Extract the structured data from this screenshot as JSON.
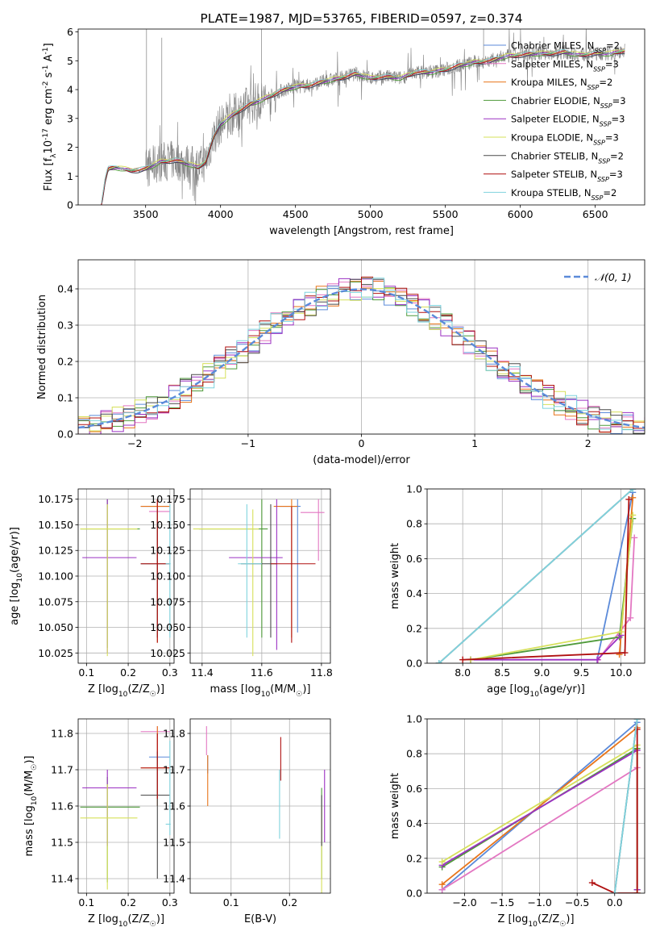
{
  "colors": {
    "Chabrier MILES": "#5b8ad9",
    "Salpeter MILES": "#e377c2",
    "Kroupa MILES": "#e8751a",
    "Chabrier ELODIE": "#4f9a3a",
    "Salpeter ELODIE": "#9b30c2",
    "Kroupa ELODIE": "#d6e05a",
    "Chabrier STELIB": "#4a4a4a",
    "Salpeter STELIB": "#b01010",
    "Kroupa STELIB": "#7fd3de",
    "gauss": "#5b8ad9",
    "spectrum": "#808080",
    "grid": "#b0b0b0"
  },
  "chart_data": [
    {
      "id": "spectrum",
      "type": "line",
      "title": "PLATE=1987, MJD=53765, FIBERID=0597, z=0.374",
      "xlabel": "wavelength [Angstrom, rest frame]",
      "ylabel": "Flux [f$_\\lambda$10$^{-17}$ erg cm$^{-2}$ s$^{-1}$ A$^{-1}$]",
      "xlim": [
        3050,
        6830
      ],
      "ylim": [
        0,
        6.1
      ],
      "xticks": [
        3500,
        4000,
        4500,
        5000,
        5500,
        6000,
        6500
      ],
      "yticks": [
        0,
        1,
        2,
        3,
        4,
        5,
        6
      ],
      "grid": false,
      "legend_position": "top-right",
      "legend": [
        {
          "model": "Chabrier MILES",
          "label": "Chabrier MILES, N",
          "sub": "SSP",
          "n": "=2"
        },
        {
          "model": "Salpeter MILES",
          "label": "Salpeter MILES, N",
          "sub": "SSP",
          "n": "=3"
        },
        {
          "model": "Kroupa MILES",
          "label": "Kroupa MILES, N",
          "sub": "SSP",
          "n": "=2"
        },
        {
          "model": "Chabrier ELODIE",
          "label": "Chabrier ELODIE, N",
          "sub": "SSP",
          "n": "=3"
        },
        {
          "model": "Salpeter ELODIE",
          "label": "Salpeter ELODIE, N",
          "sub": "SSP",
          "n": "=3"
        },
        {
          "model": "Kroupa ELODIE",
          "label": "Kroupa ELODIE, N",
          "sub": "SSP",
          "n": "=3"
        },
        {
          "model": "Chabrier STELIB",
          "label": "Chabrier STELIB, N",
          "sub": "SSP",
          "n": "=2"
        },
        {
          "model": "Salpeter STELIB",
          "label": "Salpeter STELIB, N",
          "sub": "SSP",
          "n": "=3"
        },
        {
          "model": "Kroupa STELIB",
          "label": "Kroupa STELIB, N",
          "sub": "SSP",
          "n": "=2"
        }
      ],
      "continuum": [
        [
          3205,
          0
        ],
        [
          3230,
          0.85
        ],
        [
          3250,
          1.25
        ],
        [
          3300,
          1.3
        ],
        [
          3350,
          1.25
        ],
        [
          3400,
          1.2
        ],
        [
          3450,
          1.2
        ],
        [
          3500,
          1.25
        ],
        [
          3600,
          1.5
        ],
        [
          3700,
          1.55
        ],
        [
          3800,
          1.4
        ],
        [
          3850,
          1.3
        ],
        [
          3900,
          1.5
        ],
        [
          3950,
          2.3
        ],
        [
          4000,
          2.8
        ],
        [
          4100,
          3.2
        ],
        [
          4200,
          3.5
        ],
        [
          4300,
          3.7
        ],
        [
          4400,
          3.95
        ],
        [
          4500,
          4.1
        ],
        [
          4600,
          4.15
        ],
        [
          4700,
          4.3
        ],
        [
          4800,
          4.4
        ],
        [
          4900,
          4.55
        ],
        [
          5000,
          4.4
        ],
        [
          5100,
          4.45
        ],
        [
          5200,
          4.4
        ],
        [
          5300,
          4.6
        ],
        [
          5400,
          4.6
        ],
        [
          5500,
          4.7
        ],
        [
          5600,
          4.85
        ],
        [
          5700,
          4.95
        ],
        [
          5800,
          5.0
        ],
        [
          5900,
          5.15
        ],
        [
          6000,
          5.2
        ],
        [
          6100,
          5.25
        ],
        [
          6200,
          5.25
        ],
        [
          6300,
          5.3
        ],
        [
          6400,
          5.2
        ],
        [
          6500,
          5.25
        ],
        [
          6600,
          5.25
        ],
        [
          6700,
          5.35
        ]
      ]
    },
    {
      "id": "residuals",
      "type": "step",
      "xlabel": "(data-model)/error",
      "ylabel": "Normed distribution",
      "xlim": [
        -2.5,
        2.5
      ],
      "ylim": [
        0,
        0.48
      ],
      "xticks": [
        -2,
        -1,
        0,
        1,
        2
      ],
      "yticks": [
        0,
        0.1,
        0.2,
        0.3,
        0.4
      ],
      "grid": true,
      "bin_width": 0.1,
      "legend_position": "top-right",
      "gauss_label": "𝒩(0, 1)"
    },
    {
      "id": "age_vs_Z",
      "type": "errorbar",
      "xlabel": "Z [log$_{10}$(Z/Z$_\\odot$)]",
      "ylabel": "age  [log$_{10}$(age/yr)]",
      "xlim": [
        0.08,
        0.31
      ],
      "ylim": [
        10.015,
        10.185
      ],
      "xticks": [
        0.1,
        0.2,
        0.3
      ],
      "yticks": [
        10.025,
        10.05,
        10.075,
        10.1,
        10.125,
        10.15,
        10.175
      ],
      "grid": true,
      "points": [
        {
          "model": "Chabrier MILES",
          "x": 0.27,
          "y": 10.168,
          "xlo": 0.23,
          "xhi": 0.3,
          "ylo": 10.04,
          "yhi": 10.175
        },
        {
          "model": "Salpeter MILES",
          "x": 0.27,
          "y": 10.163,
          "xlo": 0.25,
          "xhi": 0.3,
          "ylo": 10.11,
          "yhi": 10.175
        },
        {
          "model": "Kroupa MILES",
          "x": 0.27,
          "y": 10.168,
          "xlo": 0.23,
          "xhi": 0.3,
          "ylo": 10.035,
          "yhi": 10.175
        },
        {
          "model": "Chabrier ELODIE",
          "x": 0.15,
          "y": 10.146,
          "xlo": 0.085,
          "xhi": 0.228,
          "ylo": 10.03,
          "yhi": 10.175
        },
        {
          "model": "Salpeter ELODIE",
          "x": 0.15,
          "y": 10.118,
          "xlo": 0.09,
          "xhi": 0.22,
          "ylo": 10.025,
          "yhi": 10.175
        },
        {
          "model": "Kroupa ELODIE",
          "x": 0.15,
          "y": 10.146,
          "xlo": 0.085,
          "xhi": 0.222,
          "ylo": 10.022,
          "yhi": 10.17
        },
        {
          "model": "Chabrier STELIB",
          "x": 0.27,
          "y": 10.112,
          "xlo": 0.23,
          "xhi": 0.3,
          "ylo": 10.04,
          "yhi": 10.165
        },
        {
          "model": "Salpeter STELIB",
          "x": 0.27,
          "y": 10.112,
          "xlo": 0.23,
          "xhi": 0.3,
          "ylo": 10.035,
          "yhi": 10.175
        },
        {
          "model": "Kroupa STELIB",
          "x": 0.3,
          "y": 10.112,
          "xlo": 0.29,
          "xhi": 0.302,
          "ylo": 10.04,
          "yhi": 10.17
        }
      ]
    },
    {
      "id": "age_vs_mass",
      "type": "errorbar",
      "xlabel": "mass [log$_{10}$(M/M$_\\odot$)]",
      "ylabel": "",
      "xlim": [
        11.36,
        11.83
      ],
      "ylim": [
        10.015,
        10.185
      ],
      "xticks": [
        11.4,
        11.6,
        11.8
      ],
      "yticks": [
        10.025,
        10.05,
        10.075,
        10.1,
        10.125,
        10.15,
        10.175
      ],
      "grid": true,
      "points": [
        {
          "model": "Chabrier MILES",
          "x": 11.72,
          "y": 10.168,
          "xlo": 11.66,
          "xhi": 11.73,
          "ylo": 10.045,
          "yhi": 10.175
        },
        {
          "model": "Salpeter MILES",
          "x": 11.79,
          "y": 10.162,
          "xlo": 11.73,
          "xhi": 11.81,
          "ylo": 10.115,
          "yhi": 10.175
        },
        {
          "model": "Kroupa MILES",
          "x": 11.7,
          "y": 10.168,
          "xlo": 11.64,
          "xhi": 11.72,
          "ylo": 10.04,
          "yhi": 10.175
        },
        {
          "model": "Chabrier ELODIE",
          "x": 11.6,
          "y": 10.146,
          "xlo": 11.39,
          "xhi": 11.62,
          "ylo": 10.04,
          "yhi": 10.175
        },
        {
          "model": "Salpeter ELODIE",
          "x": 11.65,
          "y": 10.118,
          "xlo": 11.49,
          "xhi": 11.67,
          "ylo": 10.028,
          "yhi": 10.175
        },
        {
          "model": "Kroupa ELODIE",
          "x": 11.57,
          "y": 10.146,
          "xlo": 11.37,
          "xhi": 11.59,
          "ylo": 10.022,
          "yhi": 10.165
        },
        {
          "model": "Chabrier STELIB",
          "x": 11.63,
          "y": 10.112,
          "xlo": 11.53,
          "xhi": 11.65,
          "ylo": 10.04,
          "yhi": 10.17
        },
        {
          "model": "Salpeter STELIB",
          "x": 11.7,
          "y": 10.112,
          "xlo": 11.63,
          "xhi": 11.78,
          "ylo": 10.035,
          "yhi": 10.168
        },
        {
          "model": "Kroupa STELIB",
          "x": 11.55,
          "y": 10.112,
          "xlo": 11.52,
          "xhi": 11.6,
          "ylo": 10.04,
          "yhi": 10.17
        }
      ]
    },
    {
      "id": "weight_vs_age",
      "type": "line",
      "xlabel": "age  [log$_{10}$(age/yr)]",
      "ylabel": "mass weight",
      "xlim": [
        7.55,
        10.3
      ],
      "ylim": [
        0,
        1
      ],
      "xticks": [
        8.0,
        8.5,
        9.0,
        9.5,
        10.0
      ],
      "yticks": [
        0,
        0.2,
        0.4,
        0.6,
        0.8,
        1.0
      ],
      "grid": true,
      "series": [
        {
          "model": "Chabrier MILES",
          "x": [
            9.7,
            10.15
          ],
          "y": [
            0.02,
            0.98
          ]
        },
        {
          "model": "Salpeter MILES",
          "x": [
            9.71,
            10.12,
            10.17
          ],
          "y": [
            0.02,
            0.26,
            0.72
          ]
        },
        {
          "model": "Kroupa MILES",
          "x": [
            9.98,
            10.15
          ],
          "y": [
            0.05,
            0.95
          ]
        },
        {
          "model": "Chabrier ELODIE",
          "x": [
            8.1,
            9.98,
            10.15
          ],
          "y": [
            0.02,
            0.15,
            0.83
          ]
        },
        {
          "model": "Salpeter ELODIE",
          "x": [
            8.1,
            9.7,
            10.0
          ],
          "y": [
            0.02,
            0.02,
            0.16
          ]
        },
        {
          "model": "Kroupa ELODIE",
          "x": [
            8.1,
            10.0,
            10.15
          ],
          "y": [
            0.02,
            0.18,
            0.85
          ]
        },
        {
          "model": "Chabrier STELIB",
          "x": [
            7.7,
            10.15
          ],
          "y": [
            0.0,
            1.0
          ]
        },
        {
          "model": "Salpeter STELIB",
          "x": [
            8.0,
            10.05,
            10.1
          ],
          "y": [
            0.02,
            0.06,
            0.94
          ]
        },
        {
          "model": "Kroupa STELIB",
          "x": [
            7.7,
            10.15
          ],
          "y": [
            0.0,
            1.0
          ]
        }
      ]
    },
    {
      "id": "mass_vs_Z",
      "type": "errorbar",
      "xlabel": "Z [log$_{10}$(Z/Z$_\\odot$)]",
      "ylabel": "mass [log$_{10}$(M/M$_\\odot$)]",
      "xlim": [
        0.08,
        0.31
      ],
      "ylim": [
        11.36,
        11.84
      ],
      "xticks": [
        0.1,
        0.2,
        0.3
      ],
      "yticks": [
        11.4,
        11.5,
        11.6,
        11.7,
        11.8
      ],
      "grid": true,
      "points": [
        {
          "model": "Chabrier MILES",
          "x": 0.27,
          "y": 11.735,
          "xlo": 0.25,
          "xhi": 0.3,
          "ylo": 11.6,
          "yhi": 11.8
        },
        {
          "model": "Salpeter MILES",
          "x": 0.27,
          "y": 11.805,
          "xlo": 0.23,
          "xhi": 0.3,
          "ylo": 11.74,
          "yhi": 11.82
        },
        {
          "model": "Kroupa MILES",
          "x": 0.27,
          "y": 11.705,
          "xlo": 0.23,
          "xhi": 0.3,
          "ylo": 11.6,
          "yhi": 11.82
        },
        {
          "model": "Chabrier ELODIE",
          "x": 0.15,
          "y": 11.597,
          "xlo": 0.085,
          "xhi": 0.228,
          "ylo": 11.39,
          "yhi": 11.68
        },
        {
          "model": "Salpeter ELODIE",
          "x": 0.15,
          "y": 11.65,
          "xlo": 0.09,
          "xhi": 0.22,
          "ylo": 11.49,
          "yhi": 11.7
        },
        {
          "model": "Kroupa ELODIE",
          "x": 0.15,
          "y": 11.567,
          "xlo": 0.085,
          "xhi": 0.222,
          "ylo": 11.37,
          "yhi": 11.66
        },
        {
          "model": "Chabrier STELIB",
          "x": 0.27,
          "y": 11.63,
          "xlo": 0.23,
          "xhi": 0.3,
          "ylo": 11.4,
          "yhi": 11.75
        },
        {
          "model": "Salpeter STELIB",
          "x": 0.27,
          "y": 11.705,
          "xlo": 0.23,
          "xhi": 0.3,
          "ylo": 11.62,
          "yhi": 11.8
        },
        {
          "model": "Kroupa STELIB",
          "x": 0.3,
          "y": 11.55,
          "xlo": 0.29,
          "xhi": 0.302,
          "ylo": 11.52,
          "yhi": 11.78
        }
      ]
    },
    {
      "id": "mass_vs_EBV",
      "type": "errorbar",
      "xlabel": "E(B-V)",
      "ylabel": "",
      "xlim": [
        0.03,
        0.27
      ],
      "ylim": [
        11.36,
        11.84
      ],
      "xticks": [
        0.1,
        0.2
      ],
      "yticks": [
        11.4,
        11.5,
        11.6,
        11.7,
        11.8
      ],
      "grid": true,
      "points": [
        {
          "model": "Chabrier MILES",
          "x": 0.06,
          "y": 11.735,
          "ylo": 11.69,
          "yhi": 11.74
        },
        {
          "model": "Salpeter MILES",
          "x": 0.058,
          "y": 11.805,
          "ylo": 11.74,
          "yhi": 11.82
        },
        {
          "model": "Kroupa MILES",
          "x": 0.06,
          "y": 11.705,
          "ylo": 11.6,
          "yhi": 11.74
        },
        {
          "model": "Chabrier ELODIE",
          "x": 0.255,
          "y": 11.597,
          "ylo": 11.4,
          "yhi": 11.65
        },
        {
          "model": "Salpeter ELODIE",
          "x": 0.26,
          "y": 11.65,
          "ylo": 11.5,
          "yhi": 11.7
        },
        {
          "model": "Kroupa ELODIE",
          "x": 0.255,
          "y": 11.567,
          "ylo": 11.36,
          "yhi": 11.6
        },
        {
          "model": "Chabrier STELIB",
          "x": 0.255,
          "y": 11.63,
          "ylo": 11.49,
          "yhi": 11.63
        },
        {
          "model": "Salpeter STELIB",
          "x": 0.185,
          "y": 11.705,
          "ylo": 11.67,
          "yhi": 11.79
        },
        {
          "model": "Kroupa STELIB",
          "x": 0.183,
          "y": 11.55,
          "ylo": 11.51,
          "yhi": 11.7
        }
      ]
    },
    {
      "id": "weight_vs_Z",
      "type": "line",
      "xlabel": "Z [log$_{10}$(Z/Z$_\\odot$)]",
      "ylabel": "mass weight",
      "xlim": [
        -2.5,
        0.4
      ],
      "ylim": [
        0,
        1
      ],
      "xticks": [
        -2.0,
        -1.5,
        -1.0,
        -0.5,
        0.0
      ],
      "yticks": [
        0,
        0.2,
        0.4,
        0.6,
        0.8,
        1.0
      ],
      "grid": true,
      "series": [
        {
          "model": "Chabrier MILES",
          "x": [
            -2.3,
            0.3
          ],
          "y": [
            0.02,
            0.98
          ]
        },
        {
          "model": "Salpeter MILES",
          "x": [
            -2.3,
            0.3
          ],
          "y": [
            0.02,
            0.72
          ]
        },
        {
          "model": "Kroupa MILES",
          "x": [
            -2.3,
            0.3
          ],
          "y": [
            0.05,
            0.95
          ]
        },
        {
          "model": "Chabrier ELODIE",
          "x": [
            -2.3,
            0.3,
            0.3
          ],
          "y": [
            0.15,
            0.83,
            0.02
          ]
        },
        {
          "model": "Salpeter ELODIE",
          "x": [
            -2.3,
            0.3,
            0.3
          ],
          "y": [
            0.16,
            0.82,
            0.02
          ]
        },
        {
          "model": "Kroupa ELODIE",
          "x": [
            -2.3,
            0.3,
            0.3
          ],
          "y": [
            0.18,
            0.85,
            0.0
          ]
        },
        {
          "model": "Chabrier STELIB",
          "x": [
            0.0,
            0.3
          ],
          "y": [
            0.0,
            1.0
          ]
        },
        {
          "model": "Salpeter STELIB",
          "x": [
            -0.3,
            0.0,
            0.3,
            0.3
          ],
          "y": [
            0.06,
            0.0,
            0.0,
            0.94
          ]
        },
        {
          "model": "Kroupa STELIB",
          "x": [
            0.0,
            0.3
          ],
          "y": [
            0.0,
            1.0
          ]
        }
      ]
    }
  ]
}
